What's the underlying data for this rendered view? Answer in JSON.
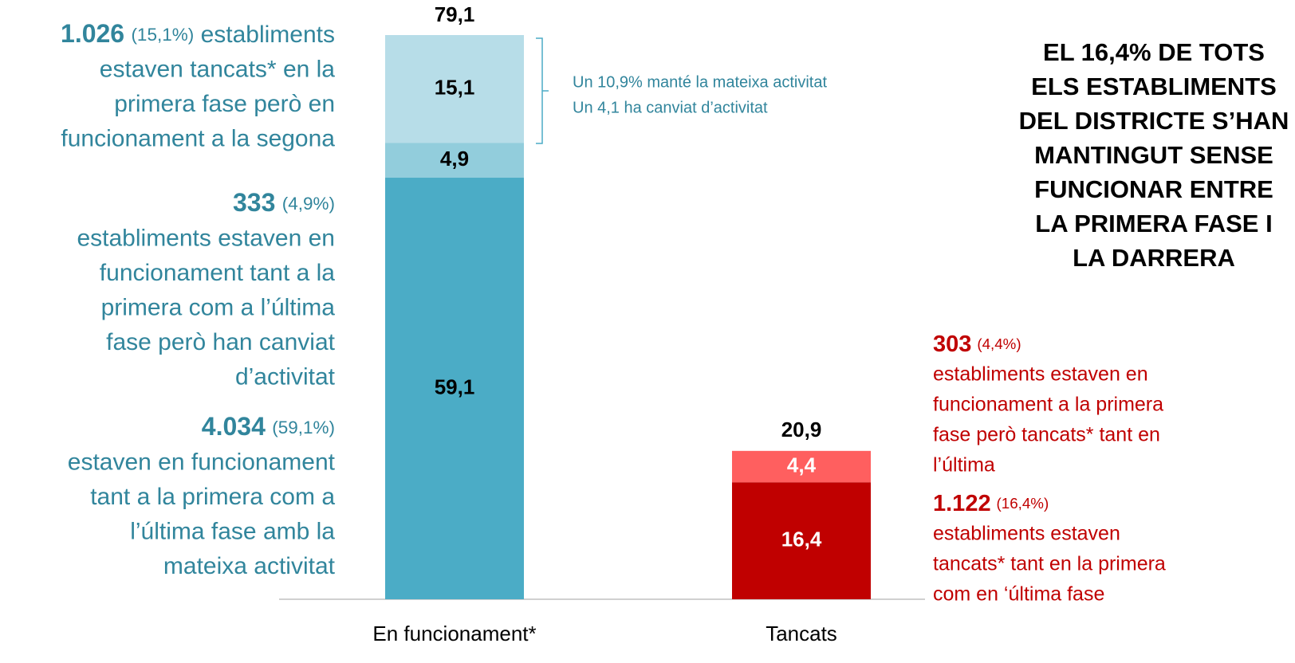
{
  "chart_data": {
    "type": "stacked_bar",
    "bars": [
      {
        "category": "En funcionament*",
        "total": 79.1,
        "segments": [
          {
            "value": 59.1,
            "color": "#4bacc6",
            "label": "59,1"
          },
          {
            "value": 4.9,
            "color": "#92cddc",
            "label": "4,9"
          },
          {
            "value": 15.1,
            "color": "#b7dde8",
            "label": "15,1"
          }
        ],
        "total_label": "79,1"
      },
      {
        "category": "Tancats",
        "total": 20.9,
        "segments": [
          {
            "value": 16.4,
            "color": "#c00000",
            "label": "16,4",
            "label_color": "#ffffff"
          },
          {
            "value": 4.4,
            "color": "#ff5f5f",
            "label": "4,4",
            "label_color": "#ffffff"
          }
        ],
        "total_label": "20,9"
      }
    ],
    "bracket_note": [
      "Un 10,9% manté la mateixa activitat",
      "Un 4,1 ha canviat d’activitat"
    ],
    "headline": [
      "EL 16,4% DE TOTS",
      "ELS ESTABLIMENTS",
      "DEL DISTRICTE S’HAN",
      "MANTINGUT SENSE",
      "FUNCIONAR ENTRE",
      "LA PRIMERA FASE I",
      "LA DARRERA"
    ],
    "left_notes": [
      {
        "number": "1.026",
        "share": "(15,1%)",
        "inline": true,
        "lines": [
          "establiments",
          "estaven tancats* en la",
          "primera fase però en",
          "funcionament a la segona"
        ]
      },
      {
        "number": "333",
        "share": "(4,9%)",
        "inline": false,
        "lines": [
          "establiments estaven en",
          "funcionament tant a la",
          "primera com a l’última",
          "fase però han canviat",
          "d’activitat"
        ]
      },
      {
        "number": "4.034",
        "share": "(59,1%)",
        "inline": false,
        "lines": [
          "estaven en funcionament",
          "tant a la primera com a",
          "l’última fase amb la",
          "mateixa activitat"
        ]
      }
    ],
    "right_notes": [
      {
        "number": "303",
        "share": "(4,4%)",
        "inline": false,
        "lines": [
          "establiments estaven en",
          "funcionament a la primera",
          "fase però tancats* tant en",
          "l’última"
        ]
      },
      {
        "number": "1.122",
        "share": "(16,4%)",
        "inline": false,
        "lines": [
          "establiments estaven",
          "tancats* tant en la primera",
          "com en ‘última fase"
        ]
      }
    ]
  }
}
